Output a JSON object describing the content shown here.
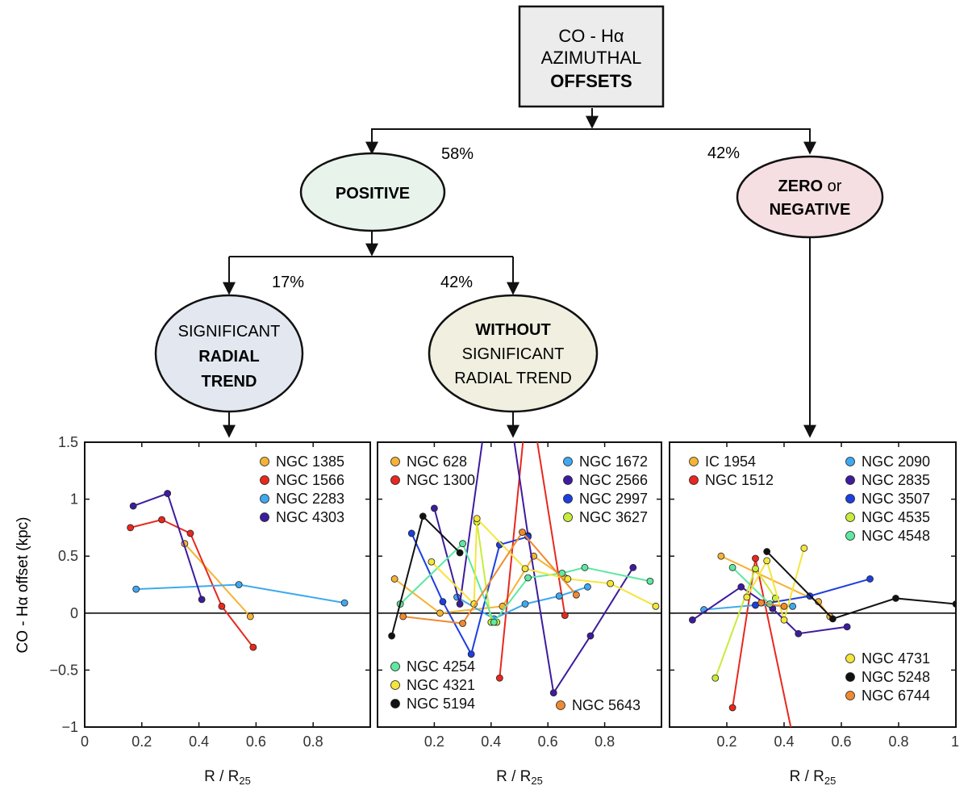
{
  "flowchart": {
    "root": {
      "line1": "CO - Hα",
      "line2": "AZIMUTHAL",
      "line3": "OFFSETS"
    },
    "positive": {
      "label": "POSITIVE",
      "pct": "58%"
    },
    "zero_negative": {
      "label_bold1": "ZERO",
      "label_normal": " or",
      "label_bold2": "NEGATIVE",
      "pct": "42%"
    },
    "significant": {
      "line1": "SIGNIFICANT",
      "line2": "RADIAL",
      "line3": "TREND",
      "pct": "17%"
    },
    "without": {
      "line1": "WITHOUT",
      "line2": "SIGNIFICANT",
      "line3": "RADIAL TREND",
      "pct": "42%"
    },
    "colors": {
      "root_fill": "#ececec",
      "positive_fill": "#e8f3ec",
      "zero_fill": "#f5dfe2",
      "significant_fill": "#e3e8f0",
      "without_fill": "#f0efe0"
    }
  },
  "axes": {
    "ylabel": "CO - Hα offset (kpc)",
    "xlabel_main": "R / R",
    "xlabel_sub": "25",
    "y_ticks": [
      "1.5",
      "1",
      "0.5",
      "0",
      "−0.5",
      "−1"
    ],
    "panel1_x_ticks": [
      "0",
      "0.2",
      "0.4",
      "0.6",
      "0.8"
    ],
    "panel2_x_ticks": [
      "0.2",
      "0.4",
      "0.6",
      "0.8"
    ],
    "panel3_x_ticks": [
      "0.2",
      "0.4",
      "0.6",
      "0.8",
      "1"
    ]
  },
  "chart_data": [
    {
      "type": "line",
      "panel": "significant radial trend",
      "xlim": [
        0,
        1
      ],
      "ylim": [
        -1,
        1.5
      ],
      "series": [
        {
          "name": "NGC 1385",
          "color": "#f5b335",
          "x": [
            0.35,
            0.58
          ],
          "y": [
            0.61,
            -0.03
          ]
        },
        {
          "name": "NGC 1566",
          "color": "#e8281e",
          "x": [
            0.16,
            0.27,
            0.37,
            0.48,
            0.59
          ],
          "y": [
            0.75,
            0.82,
            0.7,
            0.06,
            -0.3
          ]
        },
        {
          "name": "NGC 2283",
          "color": "#3fa9ef",
          "x": [
            0.18,
            0.54,
            0.91
          ],
          "y": [
            0.21,
            0.25,
            0.09
          ]
        },
        {
          "name": "NGC 4303",
          "color": "#3d1c9e",
          "x": [
            0.17,
            0.29,
            0.41
          ],
          "y": [
            0.94,
            1.05,
            0.12
          ]
        }
      ]
    },
    {
      "type": "line",
      "panel": "without significant radial trend",
      "xlim": [
        0,
        1
      ],
      "ylim": [
        -1,
        1.5
      ],
      "series": [
        {
          "name": "NGC 628",
          "color": "#f5b335",
          "x": [
            0.06,
            0.22,
            0.44,
            0.55,
            0.66
          ],
          "y": [
            0.3,
            0.0,
            0.06,
            0.5,
            0.31
          ]
        },
        {
          "name": "NGC 1300",
          "color": "#e8281e",
          "x": [
            0.43,
            0.52,
            0.55,
            0.66
          ],
          "y": [
            -0.57,
            1.7,
            1.7,
            -0.02
          ]
        },
        {
          "name": "NGC 1672",
          "color": "#3fa9ef",
          "x": [
            0.28,
            0.41,
            0.52,
            0.64,
            0.74
          ],
          "y": [
            0.14,
            -0.05,
            0.08,
            0.15,
            0.23
          ]
        },
        {
          "name": "NGC 2566",
          "color": "#3d1c9e",
          "x": [
            0.2,
            0.29,
            0.38,
            0.47,
            0.53,
            0.62,
            0.75,
            0.9
          ],
          "y": [
            0.92,
            0.08,
            1.7,
            1.7,
            0.68,
            -0.7,
            -0.2,
            0.4
          ]
        },
        {
          "name": "NGC 2997",
          "color": "#1d3fe0",
          "x": [
            0.12,
            0.23,
            0.33,
            0.43,
            0.53
          ],
          "y": [
            0.7,
            0.1,
            -0.36,
            0.6,
            0.67
          ]
        },
        {
          "name": "NGC 3627",
          "color": "#c8ec3a",
          "x": [
            0.35,
            0.4,
            0.42
          ],
          "y": [
            0.8,
            -0.08,
            -0.08
          ]
        },
        {
          "name": "NGC 4254",
          "color": "#5ee8a0",
          "x": [
            0.08,
            0.3,
            0.41,
            0.53,
            0.65,
            0.73,
            0.96
          ],
          "y": [
            0.08,
            0.61,
            -0.08,
            0.31,
            0.35,
            0.4,
            0.28
          ]
        },
        {
          "name": "NGC 4321",
          "color": "#f5e53a",
          "x": [
            0.19,
            0.34,
            0.35,
            0.52,
            0.67,
            0.82,
            0.98
          ],
          "y": [
            0.45,
            0.08,
            0.83,
            0.39,
            0.3,
            0.26,
            0.06
          ]
        },
        {
          "name": "NGC 5194",
          "color": "#111111",
          "x": [
            0.05,
            0.16,
            0.29
          ],
          "y": [
            -0.2,
            0.85,
            0.53
          ]
        },
        {
          "name": "NGC 5643",
          "color": "#f08a30",
          "x": [
            0.09,
            0.3,
            0.51,
            0.7
          ],
          "y": [
            -0.03,
            -0.09,
            0.71,
            0.16
          ]
        }
      ]
    },
    {
      "type": "line",
      "panel": "zero or negative",
      "xlim": [
        0,
        1
      ],
      "ylim": [
        -1,
        1.5
      ],
      "series": [
        {
          "name": "IC 1954",
          "color": "#f5b335",
          "x": [
            0.18,
            0.52,
            0.56
          ],
          "y": [
            0.5,
            0.1,
            -0.03
          ]
        },
        {
          "name": "NGC 1512",
          "color": "#e8281e",
          "x": [
            0.22,
            0.3,
            0.44
          ],
          "y": [
            -0.83,
            0.48,
            -1.2
          ]
        },
        {
          "name": "NGC 2090",
          "color": "#3fa9ef",
          "x": [
            0.12,
            0.3,
            0.43
          ],
          "y": [
            0.03,
            0.07,
            0.06
          ]
        },
        {
          "name": "NGC 2835",
          "color": "#3d1c9e",
          "x": [
            0.08,
            0.25,
            0.36,
            0.45,
            0.62
          ],
          "y": [
            -0.06,
            0.23,
            0.04,
            -0.18,
            -0.12
          ]
        },
        {
          "name": "NGC 3507",
          "color": "#1d3fe0",
          "x": [
            0.3,
            0.49,
            0.7
          ],
          "y": [
            0.07,
            0.15,
            0.3
          ]
        },
        {
          "name": "NGC 4535",
          "color": "#c8ec3a",
          "x": [
            0.16,
            0.3,
            0.37
          ],
          "y": [
            -0.57,
            0.39,
            0.13
          ]
        },
        {
          "name": "NGC 4548",
          "color": "#5ee8a0",
          "x": [
            0.22,
            0.35
          ],
          "y": [
            0.4,
            0.08
          ]
        },
        {
          "name": "NGC 4731",
          "color": "#f5e53a",
          "x": [
            0.27,
            0.34,
            0.4,
            0.47
          ],
          "y": [
            0.14,
            0.46,
            -0.06,
            0.57
          ]
        },
        {
          "name": "NGC 5248",
          "color": "#111111",
          "x": [
            0.34,
            0.57,
            0.79,
            1.0
          ],
          "y": [
            0.54,
            -0.05,
            0.13,
            0.08
          ]
        },
        {
          "name": "NGC 6744",
          "color": "#f08a30",
          "x": [
            0.32,
            0.4
          ],
          "y": [
            0.09,
            0.06
          ]
        }
      ]
    }
  ]
}
